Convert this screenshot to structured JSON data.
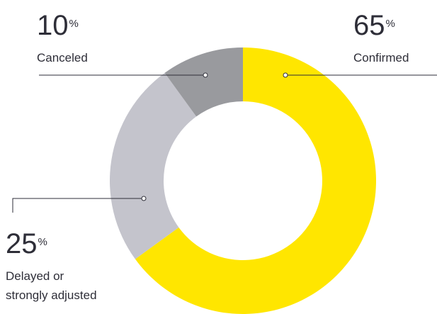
{
  "chart_data": {
    "type": "donut",
    "categories": [
      "Confirmed",
      "Delayed or\nstrongly adjusted",
      "Canceled"
    ],
    "values": [
      65,
      25,
      10
    ],
    "unit": "%",
    "colors": [
      "#ffe600",
      "#c4c4cc",
      "#999a9e"
    ]
  }
}
